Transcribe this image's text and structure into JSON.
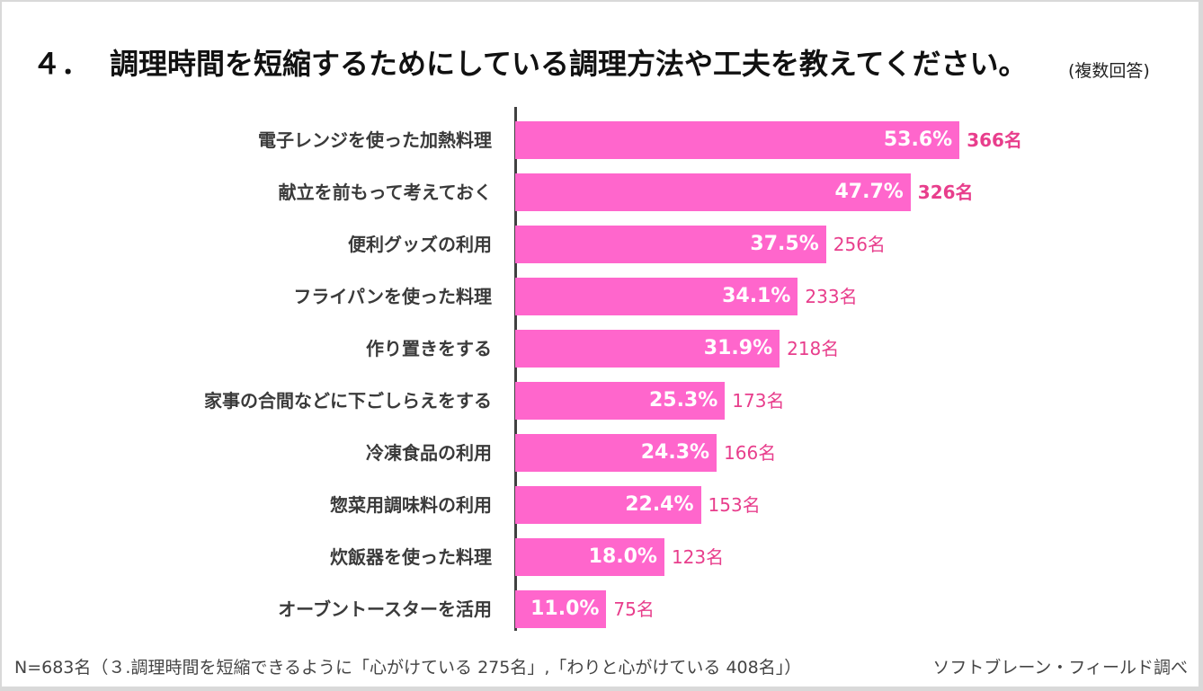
{
  "title": {
    "number": "４．",
    "text": "調理時間を短縮するためにしている調理方法や工夫を教えてください。",
    "note": "(複数回答)"
  },
  "chart_data": {
    "type": "bar",
    "orientation": "horizontal",
    "title": "４．調理時間を短縮するためにしている調理方法や工夫を教えてください。",
    "subtitle": "(複数回答)",
    "categories": [
      "電子レンジを使った加熱料理",
      "献立を前もって考えておく",
      "便利グッズの利用",
      "フライパンを使った料理",
      "作り置きをする",
      "家事の合間などに下ごしらえをする",
      "冷凍食品の利用",
      "惣菜用調味料の利用",
      "炊飯器を使った料理",
      "オーブントースターを活用"
    ],
    "values": [
      53.6,
      47.7,
      37.5,
      34.1,
      31.9,
      25.3,
      24.3,
      22.4,
      18.0,
      11.0
    ],
    "value_labels": [
      "53.6%",
      "47.7%",
      "37.5%",
      "34.1%",
      "31.9%",
      "25.3%",
      "24.3%",
      "22.4%",
      "18.0%",
      "11.0%"
    ],
    "counts": [
      366,
      326,
      256,
      233,
      218,
      173,
      166,
      153,
      123,
      75
    ],
    "count_labels": [
      "366名",
      "326名",
      "256名",
      "233名",
      "218名",
      "173名",
      "166名",
      "153名",
      "123名",
      "75名"
    ],
    "highlight_count_top": 2,
    "xlim": [
      0,
      100
    ],
    "xlabel": "",
    "ylabel": "",
    "grid": false,
    "legend": "none",
    "colors": {
      "bar": "#ff66cc",
      "count_text": "#e83e8c",
      "value_text": "#ffffff",
      "axis": "#404040"
    }
  },
  "footer": {
    "note": "N=683名（３.調理時間を短縮できるように「心がけている 275名」,「わりと心がけている 408名」）",
    "source": "ソフトブレーン・フィールド調べ"
  }
}
